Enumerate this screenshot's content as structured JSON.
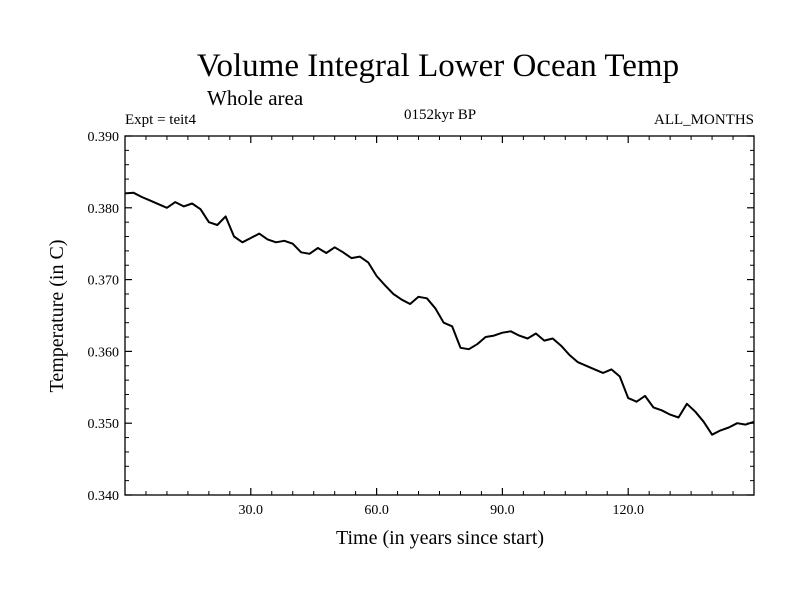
{
  "chart_data": {
    "type": "line",
    "title": "Volume Integral Lower Ocean Temp",
    "subtitle": "Whole area",
    "experiment": "Expt = teit4",
    "period": "0152kyr BP",
    "months": "ALL_MONTHS",
    "xlabel": "Time (in years since start)",
    "ylabel": "Temperature (in C)",
    "xlim": [
      0,
      150
    ],
    "ylim": [
      0.34,
      0.39
    ],
    "xticks": [
      30,
      60,
      90,
      120
    ],
    "xtick_labels": [
      "30.0",
      "60.0",
      "90.0",
      "120.0"
    ],
    "yticks": [
      0.34,
      0.35,
      0.36,
      0.37,
      0.38,
      0.39
    ],
    "ytick_labels": [
      "0.340",
      "0.350",
      "0.360",
      "0.370",
      "0.380",
      "0.390"
    ],
    "grid": false,
    "series": [
      {
        "name": "teit4",
        "color": "#000000",
        "x": [
          0,
          2,
          4,
          6,
          8,
          10,
          12,
          14,
          16,
          18,
          20,
          22,
          24,
          26,
          28,
          30,
          32,
          34,
          36,
          38,
          40,
          42,
          44,
          46,
          48,
          50,
          52,
          54,
          56,
          58,
          60,
          62,
          64,
          66,
          68,
          70,
          72,
          74,
          76,
          78,
          80,
          82,
          84,
          86,
          88,
          90,
          92,
          94,
          96,
          98,
          100,
          102,
          104,
          106,
          108,
          110,
          112,
          114,
          116,
          118,
          120,
          122,
          124,
          126,
          128,
          130,
          132,
          134,
          136,
          138,
          140,
          142,
          144,
          146,
          148,
          150
        ],
        "values": [
          0.382,
          0.3821,
          0.3815,
          0.381,
          0.3805,
          0.38,
          0.3808,
          0.3802,
          0.3806,
          0.3798,
          0.378,
          0.3776,
          0.3788,
          0.376,
          0.3752,
          0.3758,
          0.3764,
          0.3756,
          0.3752,
          0.3754,
          0.375,
          0.3738,
          0.3736,
          0.3744,
          0.3737,
          0.3745,
          0.3738,
          0.373,
          0.3732,
          0.3724,
          0.3705,
          0.3692,
          0.368,
          0.3672,
          0.3666,
          0.3676,
          0.3674,
          0.366,
          0.364,
          0.3635,
          0.3605,
          0.3603,
          0.361,
          0.362,
          0.3622,
          0.3626,
          0.3628,
          0.3622,
          0.3618,
          0.3625,
          0.3615,
          0.3618,
          0.3608,
          0.3595,
          0.3585,
          0.358,
          0.3575,
          0.357,
          0.3575,
          0.3565,
          0.3535,
          0.353,
          0.3538,
          0.3522,
          0.3518,
          0.3512,
          0.3508,
          0.3527,
          0.3516,
          0.3502,
          0.3484,
          0.349,
          0.3494,
          0.35,
          0.3498,
          0.3502
        ]
      }
    ]
  }
}
